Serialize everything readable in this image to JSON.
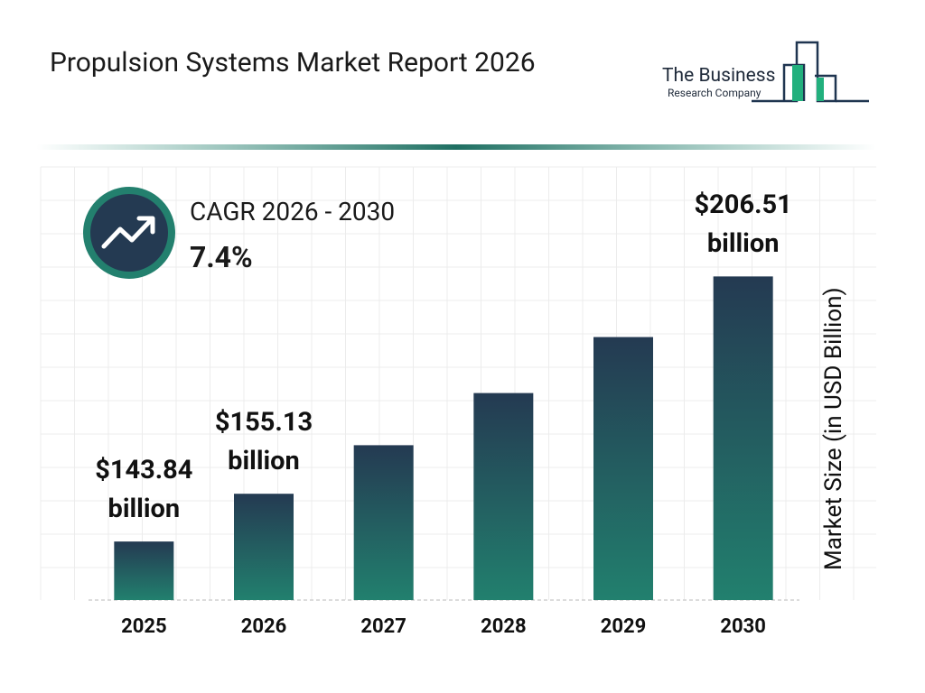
{
  "header": {
    "logo_name": "The Business",
    "logo_sub": "Research Company"
  },
  "chart_data": {
    "type": "bar",
    "title": "Propulsion Systems Market Report 2026",
    "cagr_label": "CAGR 2026 - 2030",
    "cagr_value": "7.4%",
    "y_label": "Market Size (in USD Billion)",
    "categories": [
      "2025",
      "2026",
      "2027",
      "2028",
      "2029",
      "2030"
    ],
    "values": [
      143.84,
      155.13,
      166.61,
      178.94,
      192.18,
      206.51
    ],
    "value_labels": [
      "$143.84 billion",
      "$155.13 billion",
      null,
      null,
      null,
      "$206.51 billion"
    ],
    "color": {
      "top": "#243a52",
      "bottom": "#22806e"
    },
    "ylim": [
      130,
      210
    ]
  }
}
